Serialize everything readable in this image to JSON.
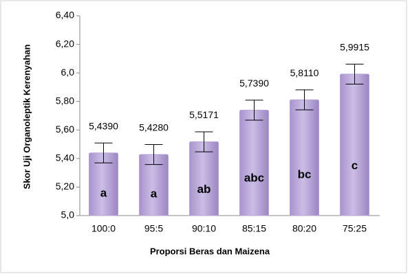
{
  "chart_data": {
    "type": "bar",
    "x_label": "Proporsi Beras dan Maizena",
    "y_label": "Skor Uji Organoleptik Kerenyahan",
    "categories": [
      "100:0",
      "95:5",
      "90:10",
      "85:15",
      "80:20",
      "75:25"
    ],
    "values": [
      5.439,
      5.428,
      5.5171,
      5.739,
      5.811,
      5.9915
    ],
    "value_labels": [
      "5,4390",
      "5,4280",
      "5,5171",
      "5,7390",
      "5,8110",
      "5,9915"
    ],
    "errors": [
      0.07,
      0.07,
      0.07,
      0.07,
      0.07,
      0.07
    ],
    "group_labels": [
      "a",
      "a",
      "ab",
      "abc",
      "bc",
      "c"
    ],
    "color": "#b6a2d8",
    "ylim": [
      5.0,
      6.4
    ],
    "yticks": [
      {
        "value": 5.0,
        "label": "5,0"
      },
      {
        "value": 5.2,
        "label": "5,20"
      },
      {
        "value": 5.4,
        "label": "5,40"
      },
      {
        "value": 5.6,
        "label": "5,60"
      },
      {
        "value": 5.8,
        "label": "5,80"
      },
      {
        "value": 6.0,
        "label": "6,0"
      },
      {
        "value": 6.2,
        "label": "6,20"
      },
      {
        "value": 6.4,
        "label": "6,40"
      }
    ],
    "grid": false
  }
}
